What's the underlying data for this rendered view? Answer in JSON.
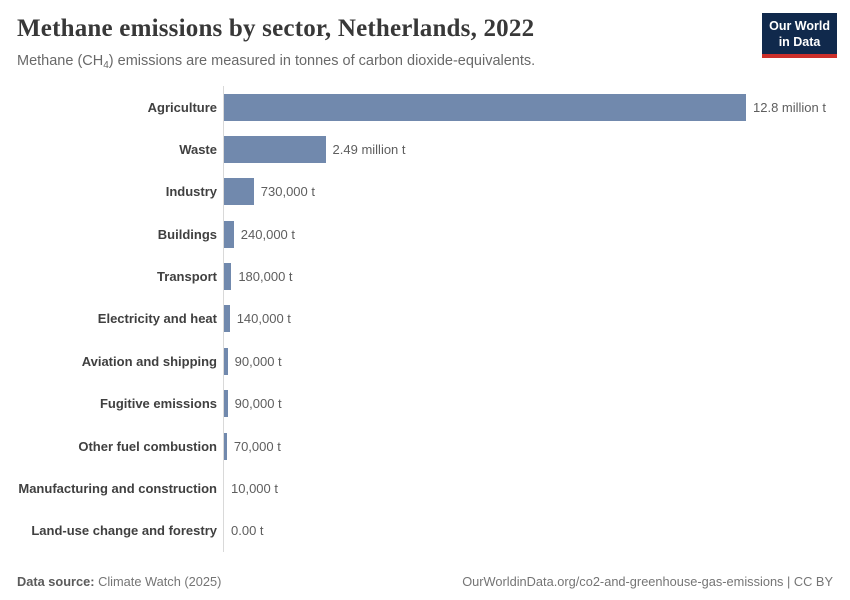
{
  "header": {
    "title": "Methane emissions by sector, Netherlands, 2022",
    "subtitle_prefix": "Methane (CH",
    "subtitle_sub": "4",
    "subtitle_suffix": ") emissions are measured in tonnes of carbon dioxide-equivalents.",
    "logo": {
      "line1": "Our World",
      "line2": "in Data",
      "bg_color": "#10294c",
      "accent_color": "#cc2f2a"
    }
  },
  "chart_data": {
    "type": "bar",
    "orientation": "horizontal",
    "title": "Methane emissions by sector, Netherlands, 2022",
    "unit": "tonnes of carbon dioxide-equivalents",
    "categories": [
      "Agriculture",
      "Waste",
      "Industry",
      "Buildings",
      "Transport",
      "Electricity and heat",
      "Aviation and shipping",
      "Fugitive emissions",
      "Other fuel combustion",
      "Manufacturing and construction",
      "Land-use change and forestry"
    ],
    "values": [
      12800000,
      2490000,
      730000,
      240000,
      180000,
      140000,
      90000,
      90000,
      70000,
      10000,
      0
    ],
    "value_labels": [
      "12.8 million t",
      "2.49 million t",
      "730,000 t",
      "240,000 t",
      "180,000 t",
      "140,000 t",
      "90,000 t",
      "90,000 t",
      "70,000 t",
      "10,000 t",
      "0.00 t"
    ],
    "xlim": [
      0,
      12800000
    ],
    "bar_color": "#7189ad",
    "axis_line_color": "#d9d9d9",
    "grid": false,
    "legend": false
  },
  "footer": {
    "source_label": "Data source:",
    "source_value": " Climate Watch (2025)",
    "credit": "OurWorldinData.org/co2-and-greenhouse-gas-emissions | CC BY"
  }
}
